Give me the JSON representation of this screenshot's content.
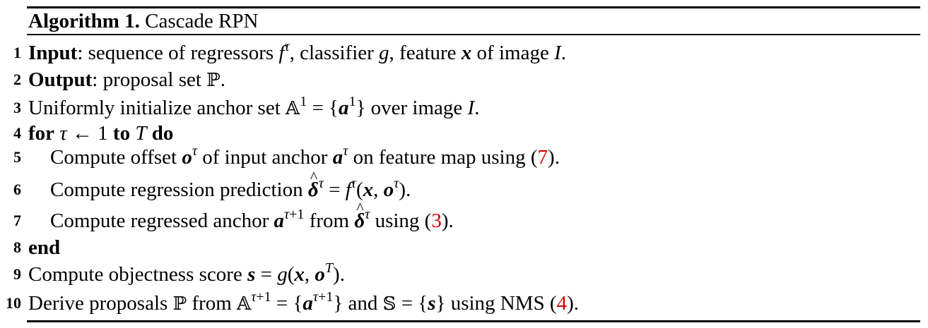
{
  "caption": {
    "label": "Algorithm 1.",
    "title": "Cascade RPN"
  },
  "lines": [
    {
      "n": "1",
      "html": "<b>Input</b>: sequence of regressors <i class=\"m\">f</i><sup><i class=\"m\">τ</i></sup>, classifier <i class=\"m\">g</i>, feature <b class=\"bv\">x</b> of image <i class=\"m\">I</i>."
    },
    {
      "n": "2",
      "html": "<b>Output</b>: proposal set <span class=\"bb\">ℙ</span>."
    },
    {
      "n": "3",
      "html": "Uniformly initialize anchor set <span class=\"bb\">𝔸</span><sup>1</sup> = {<b class=\"bv\">a</b><sup>1</sup>} over image <i class=\"m\">I</i>."
    },
    {
      "n": "4",
      "html": "<b>for</b> <i class=\"m\">τ</i> ← 1 <b>to</b> <i class=\"m\">T</i> <b>do</b>"
    },
    {
      "n": "5",
      "indent": true,
      "html": "Compute offset <b class=\"bv\">o</b><sup><i class=\"m\">τ</i></sup> of input anchor <b class=\"bv\">a</b><sup><i class=\"m\">τ</i></sup> on feature map using (<span class=\"ref\">7</span>)."
    },
    {
      "n": "6",
      "indent": true,
      "html": "Compute regression prediction <b class=\"bv hat\">δ</b><sup><i class=\"m\">τ</i></sup> = <i class=\"m\">f</i><sup><i class=\"m\">τ</i></sup>(<b class=\"bv\">x</b>, <b class=\"bv\">o</b><sup><i class=\"m\">τ</i></sup>)."
    },
    {
      "n": "7",
      "indent": true,
      "html": "Compute regressed anchor <b class=\"bv\">a</b><sup><i class=\"m\">τ</i>+1</sup> from <b class=\"bv hat\">δ</b><sup><i class=\"m\">τ</i></sup> using (<span class=\"ref\">3</span>)."
    },
    {
      "n": "8",
      "html": "<b>end</b>"
    },
    {
      "n": "9",
      "html": "Compute objectness score <b class=\"bv\">s</b> = <i class=\"m\">g</i>(<b class=\"bv\">x</b>, <b class=\"bv\">o</b><sup><i class=\"m\">T</i></sup>)."
    },
    {
      "n": "10",
      "html": "Derive proposals <span class=\"bb\">ℙ</span> from <span class=\"bb\">𝔸</span><sup><i class=\"m\">τ</i>+1</sup> = {<b class=\"bv\">a</b><sup><i class=\"m\">τ</i>+1</sup>} and <span class=\"bb\">𝕊</span> = {<b class=\"bv\">s</b>} using NMS (<span class=\"ref\">4</span>)."
    }
  ]
}
